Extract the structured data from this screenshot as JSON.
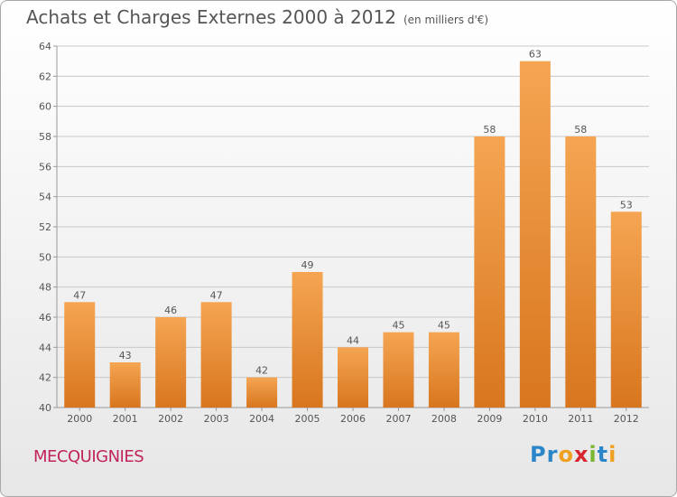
{
  "title": "Achats et Charges Externes 2000 à 2012",
  "unit_note": "(en milliers d'€)",
  "commune": "MECQUIGNIES",
  "logo": {
    "text": "Proxiti",
    "letters": [
      {
        "ch": "P",
        "color": "#2a86c8"
      },
      {
        "ch": "r",
        "color": "#2a86c8"
      },
      {
        "ch": "o",
        "color": "#f0a020"
      },
      {
        "ch": "x",
        "color": "#d8262e"
      },
      {
        "ch": "i",
        "color": "#7ab62f"
      },
      {
        "ch": "t",
        "color": "#2a86c8"
      },
      {
        "ch": "i",
        "color": "#f0a020"
      }
    ]
  },
  "colors": {
    "bar_top": "#f5a552",
    "bar_bottom": "#d8761e",
    "grid": "#c8c8c8",
    "axis": "#999999"
  },
  "chart_data": {
    "type": "bar",
    "title": "Achats et Charges Externes 2000 à 2012",
    "subtitle": "(en milliers d'€)",
    "xlabel": "",
    "ylabel": "",
    "categories": [
      "2000",
      "2001",
      "2002",
      "2003",
      "2004",
      "2005",
      "2006",
      "2007",
      "2008",
      "2009",
      "2010",
      "2011",
      "2012"
    ],
    "values": [
      47,
      43,
      46,
      47,
      42,
      49,
      44,
      45,
      45,
      58,
      63,
      58,
      53
    ],
    "ylim": [
      40,
      64
    ],
    "yticks": [
      40,
      42,
      44,
      46,
      48,
      50,
      52,
      54,
      56,
      58,
      60,
      62,
      64
    ],
    "grid": true,
    "data_labels": true
  }
}
